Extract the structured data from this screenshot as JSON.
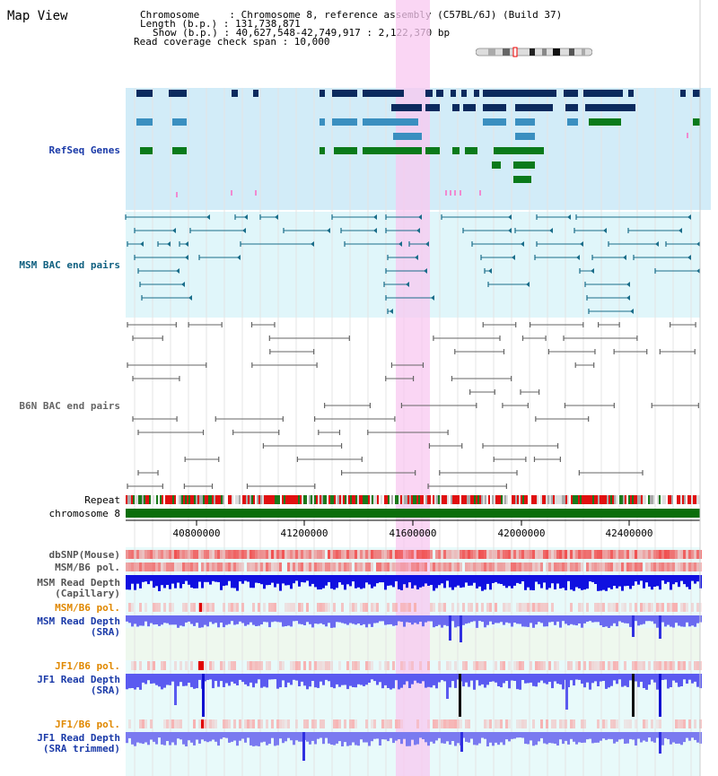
{
  "page": {
    "title": "Map View"
  },
  "info": {
    "chromosome": "Chromosome     : Chromosome 8, reference assembly (C57BL/6J) (Build 37)",
    "length": "Length (b.p.) : 131,738,871",
    "show": "Show (b.p.) : 40,627,548-42,749,917 : 2,122,370 bp",
    "read_span": "Read coverage check span : 10,000"
  },
  "tracks": {
    "refseq": {
      "label": "RefSeq Genes",
      "color": "#0b2a8a"
    },
    "msm_bac": {
      "label": "MSM BAC end pairs",
      "color": "#106080"
    },
    "b6n_bac": {
      "label": "B6N BAC end pairs",
      "color": "#555555"
    },
    "repeat": {
      "label": "Repeat"
    },
    "chrom": {
      "label": "chromosome 8"
    },
    "dbsnp": {
      "label": "dbSNP(Mouse)"
    },
    "msm_b6_pol_cap": {
      "label": "MSM/B6 pol."
    },
    "msm_depth_cap": {
      "label": "MSM Read Depth",
      "sublabel": "(Capillary)"
    },
    "msm_b6_pol_sra": {
      "label": "MSM/B6 pol."
    },
    "msm_depth_sra": {
      "label": "MSM Read Depth",
      "sublabel": "(SRA)"
    },
    "jf1_b6_pol": {
      "label": "JF1/B6 pol."
    },
    "jf1_depth_sra": {
      "label": "JF1 Read Depth",
      "sublabel": "(SRA)"
    },
    "jf1_b6_pol_trim": {
      "label": "JF1/B6 pol."
    },
    "jf1_depth_trim": {
      "label": "JF1 Read Depth",
      "sublabel": "(SRA trimmed)"
    }
  },
  "axis": {
    "ticks": [
      "40800000",
      "41200000",
      "41600000",
      "42000000",
      "42400000"
    ]
  },
  "colors": {
    "refseq_dark": "#0b2a5e",
    "refseq_mid": "#3a8fc0",
    "refseq_green": "#0a7a1a",
    "msm_bac": "#1a6d8a",
    "b6n_bac": "#666666",
    "highlight": "#f8c8f0",
    "refseq_bg": "#d2ecf8",
    "msm_bg": "#e0f6fa",
    "depth_blue": "#1010e0",
    "depth_light": "#6a6af0",
    "pol_red": "#f07070"
  }
}
